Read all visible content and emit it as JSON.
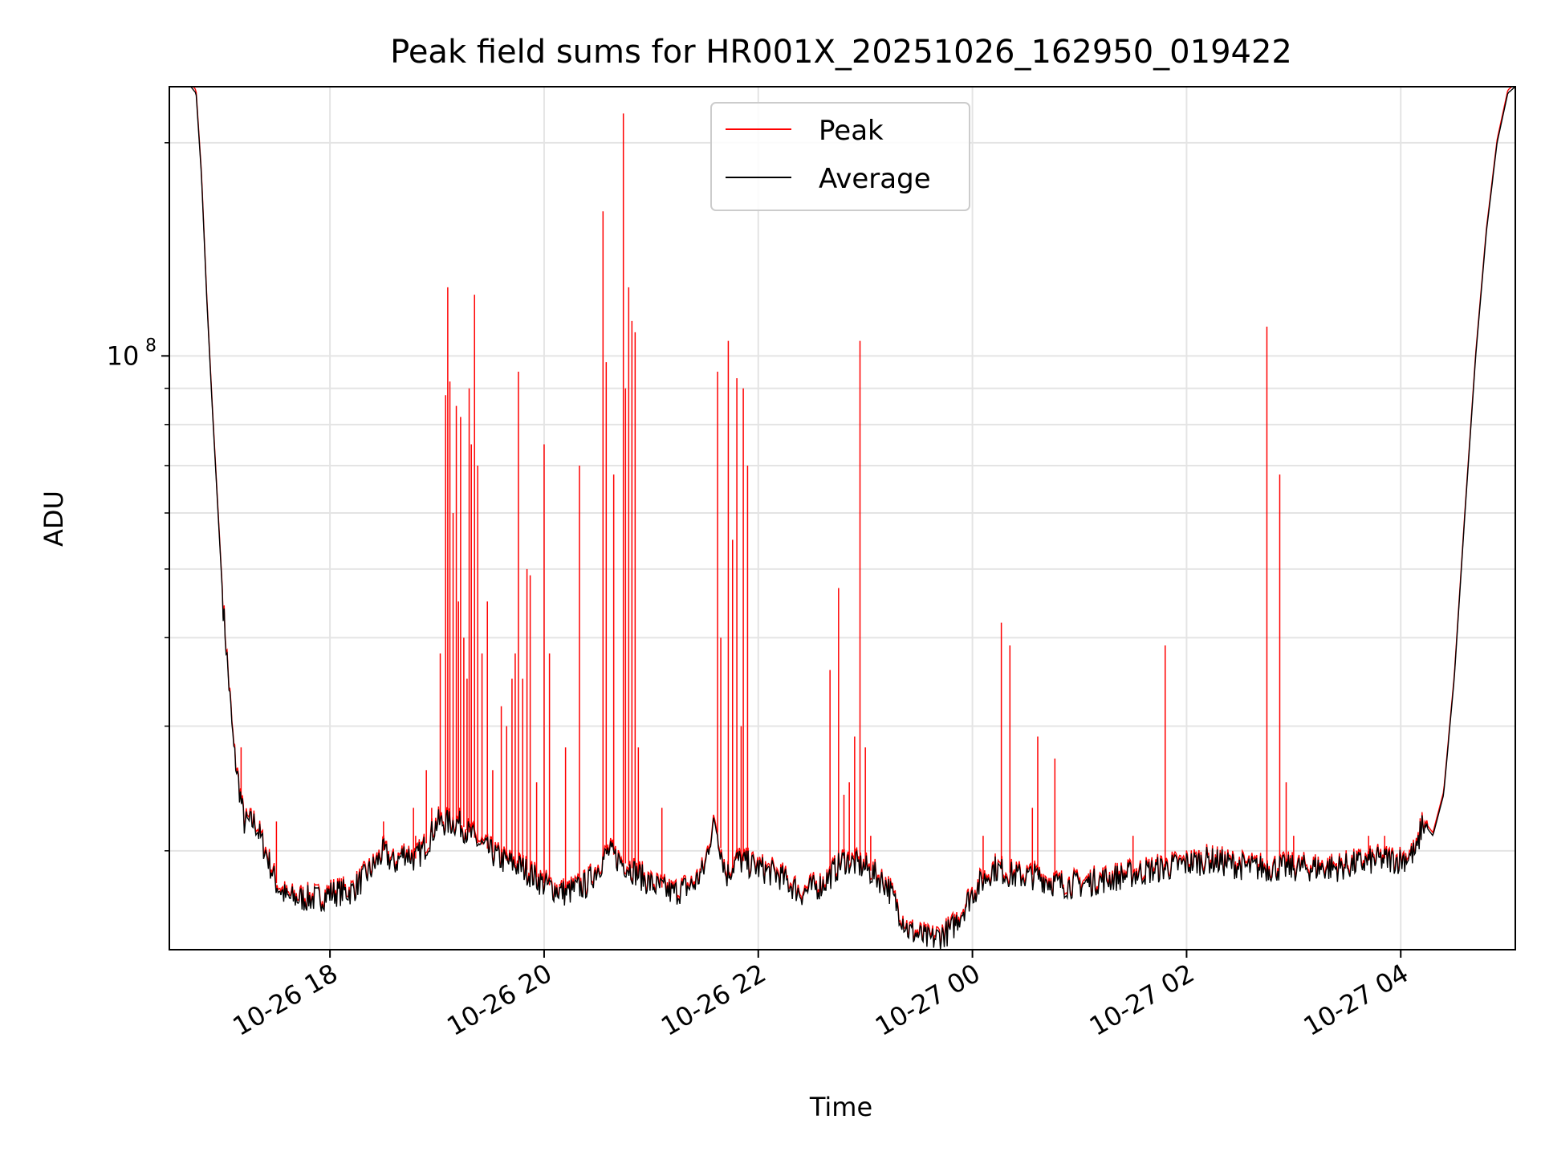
{
  "chart_data": {
    "type": "line",
    "title": "Peak field sums for HR001X_20251026_162950_019422",
    "xlabel": "Time",
    "ylabel": "ADU",
    "yscale": "log",
    "grid": true,
    "legend_position": "top-center",
    "x_unit": "hours since 10-26 00:00",
    "xlim": [
      16.5,
      29.07
    ],
    "ylim": [
      14500000.0,
      240000000.0
    ],
    "x_ticks": [
      {
        "value": 18,
        "label": "10-26 18"
      },
      {
        "value": 20,
        "label": "10-26 20"
      },
      {
        "value": 22,
        "label": "10-26 22"
      },
      {
        "value": 24,
        "label": "10-27 00"
      },
      {
        "value": 26,
        "label": "10-27 02"
      },
      {
        "value": 28,
        "label": "10-27 04"
      }
    ],
    "y_major_tick": {
      "value": 100000000,
      "label_base": "10",
      "label_exp": "8"
    },
    "y_minor_ticks": [
      20000000,
      30000000,
      40000000,
      50000000,
      60000000,
      70000000,
      80000000,
      90000000,
      200000000
    ],
    "colors": {
      "peak": "#ff0000",
      "average": "#000000",
      "grid": "#e4e4e4"
    },
    "series": [
      {
        "name": "Average",
        "color": "#000000",
        "x": [
          16.5,
          16.7,
          16.75,
          16.8,
          16.85,
          16.9,
          17.0,
          17.1,
          17.2,
          17.3,
          17.4,
          17.5,
          17.6,
          17.7,
          17.8,
          17.9,
          18.0,
          18.2,
          18.4,
          18.5,
          18.6,
          18.7,
          18.8,
          18.9,
          19.0,
          19.2,
          19.4,
          19.6,
          19.8,
          20.0,
          20.2,
          20.4,
          20.5,
          20.6,
          20.8,
          21.0,
          21.2,
          21.4,
          21.5,
          21.55,
          21.6,
          21.7,
          21.8,
          22.0,
          22.2,
          22.4,
          22.6,
          22.8,
          23.0,
          23.2,
          23.4,
          23.6,
          23.8,
          24.0,
          24.2,
          24.4,
          24.6,
          24.8,
          25.0,
          25.4,
          25.8,
          26.2,
          26.6,
          27.0,
          27.4,
          27.8,
          28.0,
          28.15,
          28.2,
          28.3,
          28.4,
          28.5,
          28.6,
          28.7,
          28.8,
          28.9,
          29.0,
          29.07
        ],
        "y": [
          240000000.0,
          240000000.0,
          235000000.0,
          180000000.0,
          120000000.0,
          85000000.0,
          45000000.0,
          28000000.0,
          22000000.0,
          22000000.0,
          20000000.0,
          18000000.0,
          17200000.0,
          17200000.0,
          17200000.0,
          17200000.0,
          17500000.0,
          17600000.0,
          19000000.0,
          20000000.0,
          19200000.0,
          20000000.0,
          19500000.0,
          20500000.0,
          22000000.0,
          22000000.0,
          20500000.0,
          19500000.0,
          19000000.0,
          18000000.0,
          17500000.0,
          18000000.0,
          19000000.0,
          20000000.0,
          19000000.0,
          18000000.0,
          17500000.0,
          18000000.0,
          19000000.0,
          21000000.0,
          22000000.0,
          18500000.0,
          19500000.0,
          19000000.0,
          18500000.0,
          17500000.0,
          18000000.0,
          19500000.0,
          19000000.0,
          18000000.0,
          15500000.0,
          15000000.0,
          15500000.0,
          17500000.0,
          19000000.0,
          18500000.0,
          18500000.0,
          18000000.0,
          18000000.0,
          18500000.0,
          19000000.0,
          19500000.0,
          19000000.0,
          19000000.0,
          19000000.0,
          19500000.0,
          19500000.0,
          20000000.0,
          22000000.0,
          21000000.0,
          24000000.0,
          35000000.0,
          60000000.0,
          100000000.0,
          150000000.0,
          200000000.0,
          235000000.0,
          240000000.0
        ]
      },
      {
        "name": "Peak",
        "color": "#ff0000",
        "spikes": [
          {
            "x": 17.17,
            "y": 28000000.0
          },
          {
            "x": 17.5,
            "y": 22000000.0
          },
          {
            "x": 18.5,
            "y": 22000000.0
          },
          {
            "x": 18.78,
            "y": 23000000.0
          },
          {
            "x": 18.8,
            "y": 21000000.0
          },
          {
            "x": 18.9,
            "y": 26000000.0
          },
          {
            "x": 18.95,
            "y": 23000000.0
          },
          {
            "x": 19.03,
            "y": 38000000.0
          },
          {
            "x": 19.08,
            "y": 88000000.0
          },
          {
            "x": 19.1,
            "y": 125000000.0
          },
          {
            "x": 19.12,
            "y": 92000000.0
          },
          {
            "x": 19.15,
            "y": 60000000.0
          },
          {
            "x": 19.18,
            "y": 85000000.0
          },
          {
            "x": 19.2,
            "y": 45000000.0
          },
          {
            "x": 19.22,
            "y": 82000000.0
          },
          {
            "x": 19.25,
            "y": 40000000.0
          },
          {
            "x": 19.28,
            "y": 35000000.0
          },
          {
            "x": 19.3,
            "y": 90000000.0
          },
          {
            "x": 19.32,
            "y": 75000000.0
          },
          {
            "x": 19.35,
            "y": 122000000.0
          },
          {
            "x": 19.38,
            "y": 70000000.0
          },
          {
            "x": 19.42,
            "y": 38000000.0
          },
          {
            "x": 19.47,
            "y": 45000000.0
          },
          {
            "x": 19.52,
            "y": 26000000.0
          },
          {
            "x": 19.6,
            "y": 32000000.0
          },
          {
            "x": 19.65,
            "y": 30000000.0
          },
          {
            "x": 19.7,
            "y": 35000000.0
          },
          {
            "x": 19.73,
            "y": 38000000.0
          },
          {
            "x": 19.76,
            "y": 95000000.0
          },
          {
            "x": 19.8,
            "y": 35000000.0
          },
          {
            "x": 19.84,
            "y": 50000000.0
          },
          {
            "x": 19.87,
            "y": 49000000.0
          },
          {
            "x": 19.93,
            "y": 25000000.0
          },
          {
            "x": 20.0,
            "y": 75000000.0
          },
          {
            "x": 20.05,
            "y": 38000000.0
          },
          {
            "x": 20.2,
            "y": 28000000.0
          },
          {
            "x": 20.33,
            "y": 70000000.0
          },
          {
            "x": 20.55,
            "y": 160000000.0
          },
          {
            "x": 20.58,
            "y": 98000000.0
          },
          {
            "x": 20.65,
            "y": 68000000.0
          },
          {
            "x": 20.74,
            "y": 220000000.0
          },
          {
            "x": 20.76,
            "y": 90000000.0
          },
          {
            "x": 20.79,
            "y": 125000000.0
          },
          {
            "x": 20.82,
            "y": 112000000.0
          },
          {
            "x": 20.85,
            "y": 108000000.0
          },
          {
            "x": 20.88,
            "y": 28000000.0
          },
          {
            "x": 21.1,
            "y": 23000000.0
          },
          {
            "x": 21.62,
            "y": 95000000.0
          },
          {
            "x": 21.65,
            "y": 40000000.0
          },
          {
            "x": 21.72,
            "y": 105000000.0
          },
          {
            "x": 21.76,
            "y": 55000000.0
          },
          {
            "x": 21.8,
            "y": 93000000.0
          },
          {
            "x": 21.84,
            "y": 30000000.0
          },
          {
            "x": 21.86,
            "y": 90000000.0
          },
          {
            "x": 21.9,
            "y": 70000000.0
          },
          {
            "x": 22.67,
            "y": 36000000.0
          },
          {
            "x": 22.75,
            "y": 47000000.0
          },
          {
            "x": 22.8,
            "y": 24000000.0
          },
          {
            "x": 22.85,
            "y": 25000000.0
          },
          {
            "x": 22.9,
            "y": 29000000.0
          },
          {
            "x": 22.95,
            "y": 105000000.0
          },
          {
            "x": 23.0,
            "y": 28000000.0
          },
          {
            "x": 23.05,
            "y": 21000000.0
          },
          {
            "x": 24.1,
            "y": 21000000.0
          },
          {
            "x": 24.27,
            "y": 42000000.0
          },
          {
            "x": 24.35,
            "y": 39000000.0
          },
          {
            "x": 24.56,
            "y": 23000000.0
          },
          {
            "x": 24.61,
            "y": 29000000.0
          },
          {
            "x": 24.77,
            "y": 27000000.0
          },
          {
            "x": 25.5,
            "y": 21000000.0
          },
          {
            "x": 25.8,
            "y": 39000000.0
          },
          {
            "x": 26.75,
            "y": 110000000.0
          },
          {
            "x": 26.87,
            "y": 68000000.0
          },
          {
            "x": 26.93,
            "y": 25000000.0
          },
          {
            "x": 27.0,
            "y": 21000000.0
          },
          {
            "x": 27.7,
            "y": 21000000.0
          },
          {
            "x": 27.85,
            "y": 21000000.0
          }
        ]
      }
    ],
    "legend": [
      {
        "label": "Peak",
        "color": "#ff0000"
      },
      {
        "label": "Average",
        "color": "#000000"
      }
    ]
  }
}
